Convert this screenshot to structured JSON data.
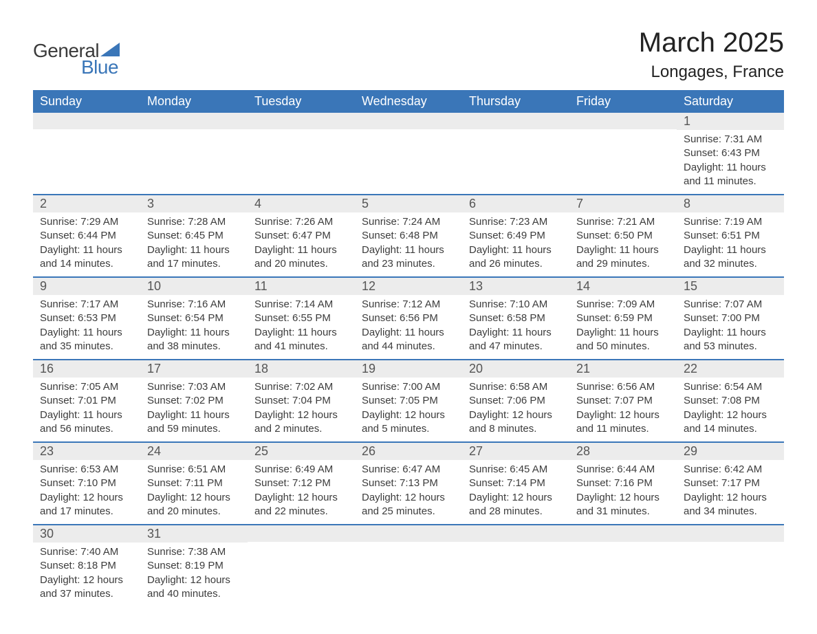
{
  "brand": {
    "word1": "General",
    "word2": "Blue"
  },
  "title": "March 2025",
  "location": "Longages, France",
  "colors": {
    "header_bg": "#3a76b8",
    "header_fg": "#ffffff",
    "daynum_bg": "#ececec",
    "row_border": "#3a76b8",
    "text": "#3c3c3c",
    "page_bg": "#ffffff"
  },
  "labels": {
    "sunrise": "Sunrise:",
    "sunset": "Sunset:",
    "daylight": "Daylight:"
  },
  "weekdays": [
    "Sunday",
    "Monday",
    "Tuesday",
    "Wednesday",
    "Thursday",
    "Friday",
    "Saturday"
  ],
  "weeks": [
    [
      null,
      null,
      null,
      null,
      null,
      null,
      {
        "d": "1",
        "sunrise": "7:31 AM",
        "sunset": "6:43 PM",
        "daylight": "11 hours and 11 minutes."
      }
    ],
    [
      {
        "d": "2",
        "sunrise": "7:29 AM",
        "sunset": "6:44 PM",
        "daylight": "11 hours and 14 minutes."
      },
      {
        "d": "3",
        "sunrise": "7:28 AM",
        "sunset": "6:45 PM",
        "daylight": "11 hours and 17 minutes."
      },
      {
        "d": "4",
        "sunrise": "7:26 AM",
        "sunset": "6:47 PM",
        "daylight": "11 hours and 20 minutes."
      },
      {
        "d": "5",
        "sunrise": "7:24 AM",
        "sunset": "6:48 PM",
        "daylight": "11 hours and 23 minutes."
      },
      {
        "d": "6",
        "sunrise": "7:23 AM",
        "sunset": "6:49 PM",
        "daylight": "11 hours and 26 minutes."
      },
      {
        "d": "7",
        "sunrise": "7:21 AM",
        "sunset": "6:50 PM",
        "daylight": "11 hours and 29 minutes."
      },
      {
        "d": "8",
        "sunrise": "7:19 AM",
        "sunset": "6:51 PM",
        "daylight": "11 hours and 32 minutes."
      }
    ],
    [
      {
        "d": "9",
        "sunrise": "7:17 AM",
        "sunset": "6:53 PM",
        "daylight": "11 hours and 35 minutes."
      },
      {
        "d": "10",
        "sunrise": "7:16 AM",
        "sunset": "6:54 PM",
        "daylight": "11 hours and 38 minutes."
      },
      {
        "d": "11",
        "sunrise": "7:14 AM",
        "sunset": "6:55 PM",
        "daylight": "11 hours and 41 minutes."
      },
      {
        "d": "12",
        "sunrise": "7:12 AM",
        "sunset": "6:56 PM",
        "daylight": "11 hours and 44 minutes."
      },
      {
        "d": "13",
        "sunrise": "7:10 AM",
        "sunset": "6:58 PM",
        "daylight": "11 hours and 47 minutes."
      },
      {
        "d": "14",
        "sunrise": "7:09 AM",
        "sunset": "6:59 PM",
        "daylight": "11 hours and 50 minutes."
      },
      {
        "d": "15",
        "sunrise": "7:07 AM",
        "sunset": "7:00 PM",
        "daylight": "11 hours and 53 minutes."
      }
    ],
    [
      {
        "d": "16",
        "sunrise": "7:05 AM",
        "sunset": "7:01 PM",
        "daylight": "11 hours and 56 minutes."
      },
      {
        "d": "17",
        "sunrise": "7:03 AM",
        "sunset": "7:02 PM",
        "daylight": "11 hours and 59 minutes."
      },
      {
        "d": "18",
        "sunrise": "7:02 AM",
        "sunset": "7:04 PM",
        "daylight": "12 hours and 2 minutes."
      },
      {
        "d": "19",
        "sunrise": "7:00 AM",
        "sunset": "7:05 PM",
        "daylight": "12 hours and 5 minutes."
      },
      {
        "d": "20",
        "sunrise": "6:58 AM",
        "sunset": "7:06 PM",
        "daylight": "12 hours and 8 minutes."
      },
      {
        "d": "21",
        "sunrise": "6:56 AM",
        "sunset": "7:07 PM",
        "daylight": "12 hours and 11 minutes."
      },
      {
        "d": "22",
        "sunrise": "6:54 AM",
        "sunset": "7:08 PM",
        "daylight": "12 hours and 14 minutes."
      }
    ],
    [
      {
        "d": "23",
        "sunrise": "6:53 AM",
        "sunset": "7:10 PM",
        "daylight": "12 hours and 17 minutes."
      },
      {
        "d": "24",
        "sunrise": "6:51 AM",
        "sunset": "7:11 PM",
        "daylight": "12 hours and 20 minutes."
      },
      {
        "d": "25",
        "sunrise": "6:49 AM",
        "sunset": "7:12 PM",
        "daylight": "12 hours and 22 minutes."
      },
      {
        "d": "26",
        "sunrise": "6:47 AM",
        "sunset": "7:13 PM",
        "daylight": "12 hours and 25 minutes."
      },
      {
        "d": "27",
        "sunrise": "6:45 AM",
        "sunset": "7:14 PM",
        "daylight": "12 hours and 28 minutes."
      },
      {
        "d": "28",
        "sunrise": "6:44 AM",
        "sunset": "7:16 PM",
        "daylight": "12 hours and 31 minutes."
      },
      {
        "d": "29",
        "sunrise": "6:42 AM",
        "sunset": "7:17 PM",
        "daylight": "12 hours and 34 minutes."
      }
    ],
    [
      {
        "d": "30",
        "sunrise": "7:40 AM",
        "sunset": "8:18 PM",
        "daylight": "12 hours and 37 minutes."
      },
      {
        "d": "31",
        "sunrise": "7:38 AM",
        "sunset": "8:19 PM",
        "daylight": "12 hours and 40 minutes."
      },
      null,
      null,
      null,
      null,
      null
    ]
  ]
}
